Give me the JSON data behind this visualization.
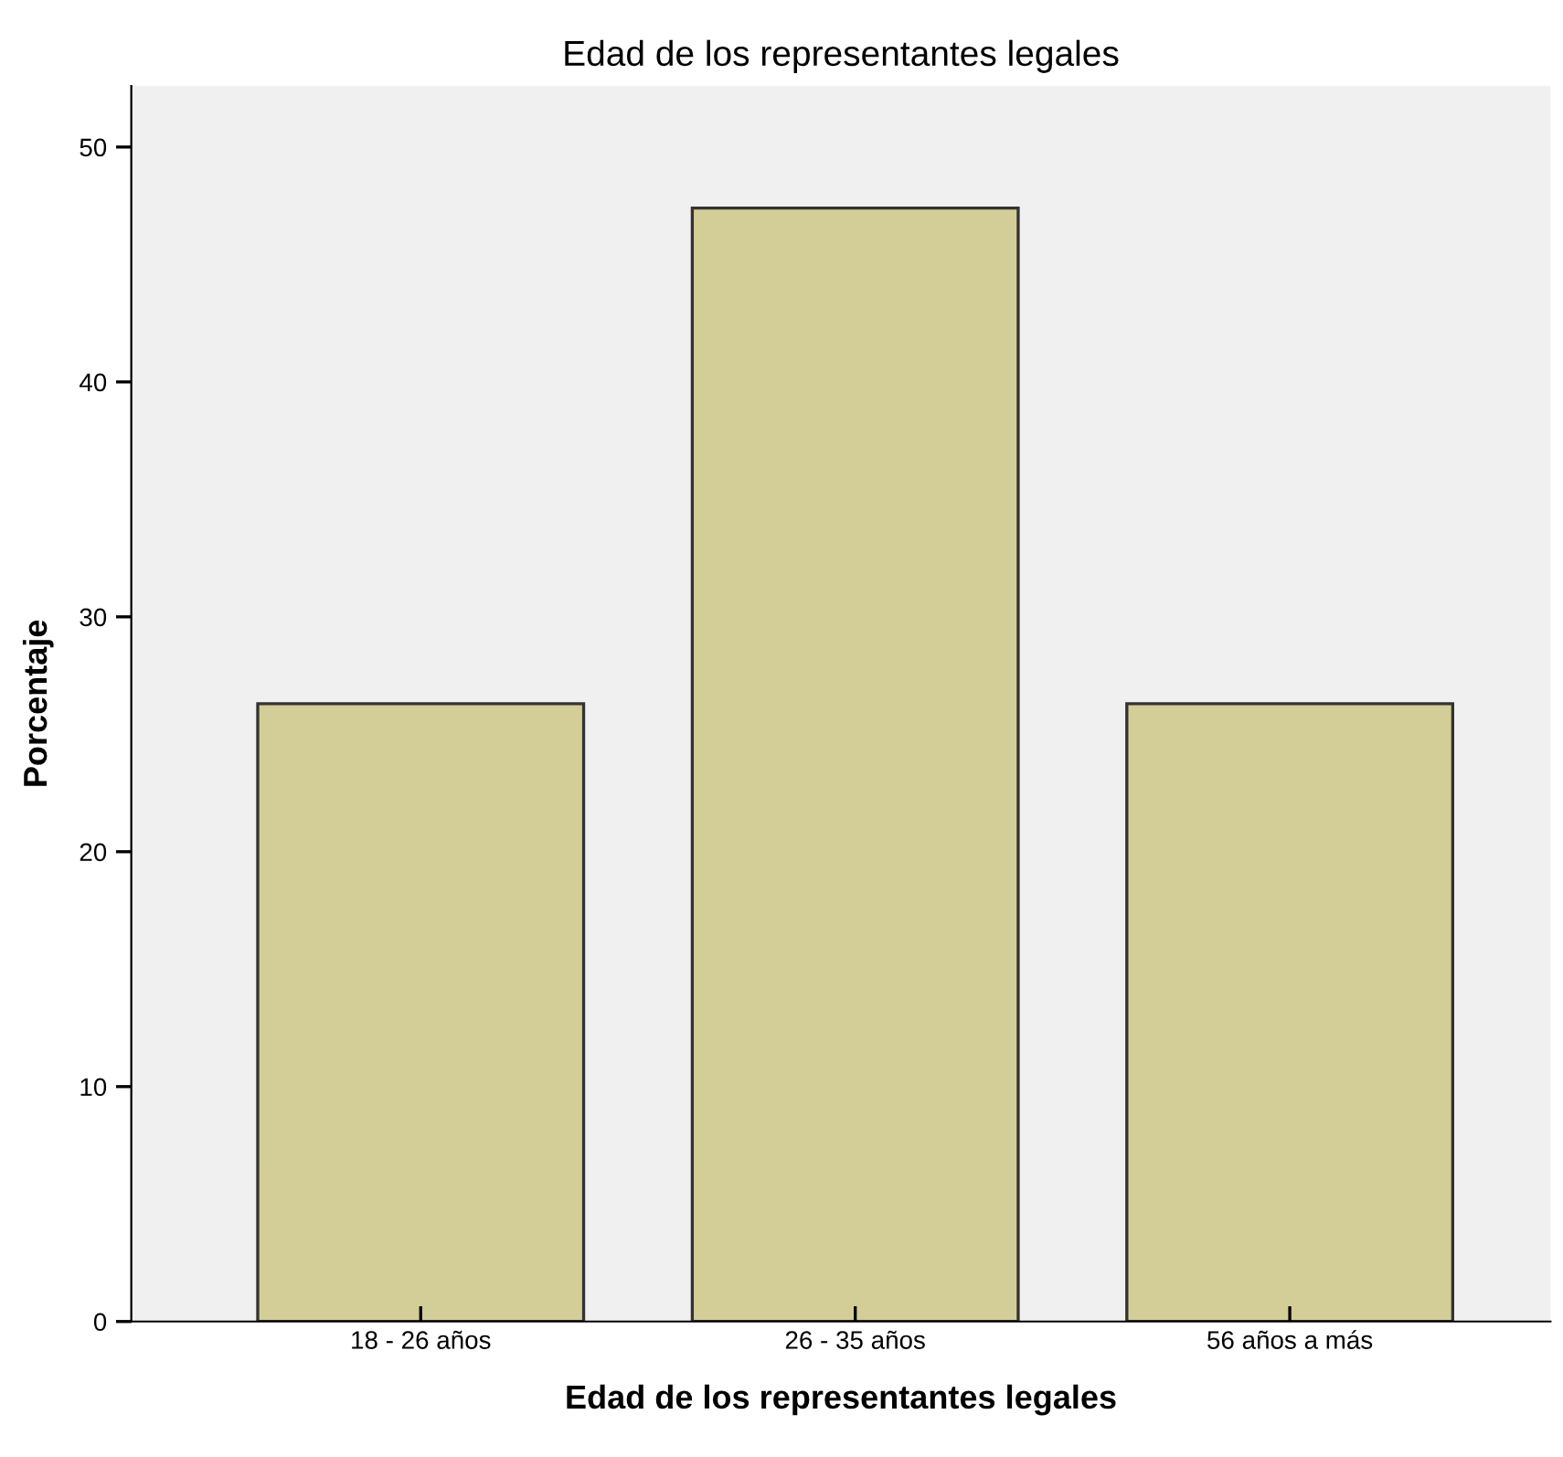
{
  "chart_data": {
    "type": "bar",
    "title": "Edad de los representantes legales",
    "xlabel": "Edad de los representantes legales",
    "ylabel": "Porcentaje",
    "categories": [
      "18 - 26 años",
      "26 - 35 años",
      "56 años a más"
    ],
    "values": [
      26.3,
      47.4,
      26.3
    ],
    "color": "#d3cd97",
    "ylim": [
      0,
      52.6
    ],
    "yticks": [
      0,
      10,
      20,
      30,
      40,
      50
    ],
    "grid": false
  }
}
